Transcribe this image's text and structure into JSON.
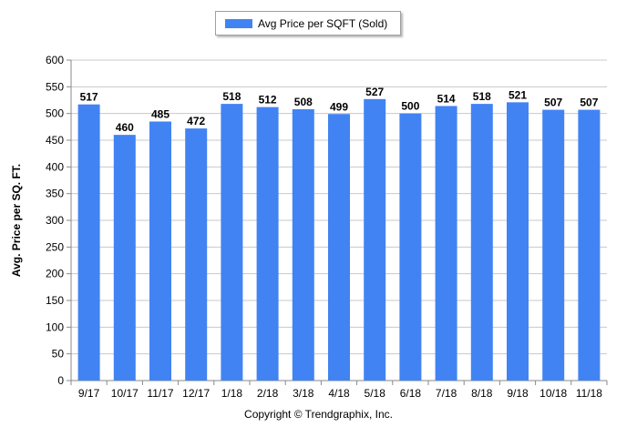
{
  "chart_data": {
    "type": "bar",
    "categories": [
      "9/17",
      "10/17",
      "11/17",
      "12/17",
      "1/18",
      "2/18",
      "3/18",
      "4/18",
      "5/18",
      "6/18",
      "7/18",
      "8/18",
      "9/18",
      "10/18",
      "11/18"
    ],
    "series": [
      {
        "name": "Avg Price per SQFT (Sold)",
        "values": [
          517,
          460,
          485,
          472,
          518,
          512,
          508,
          499,
          527,
          500,
          514,
          518,
          521,
          507,
          507
        ]
      }
    ],
    "data_labels": [
      "517",
      "460",
      "485",
      "472",
      "518",
      "512",
      "508",
      "499",
      "527",
      "500",
      "514",
      "518",
      "521",
      "507",
      "507"
    ],
    "ylabel": "Avg. Price per SQ. FT.",
    "ylim": [
      0,
      600
    ],
    "yticks": [
      0,
      50,
      100,
      150,
      200,
      250,
      300,
      350,
      400,
      450,
      500,
      550,
      600
    ],
    "grid": true,
    "legend_position": "top",
    "bar_color": "#4283f3"
  },
  "footer": {
    "copyright": "Copyright © Trendgraphix, Inc."
  }
}
